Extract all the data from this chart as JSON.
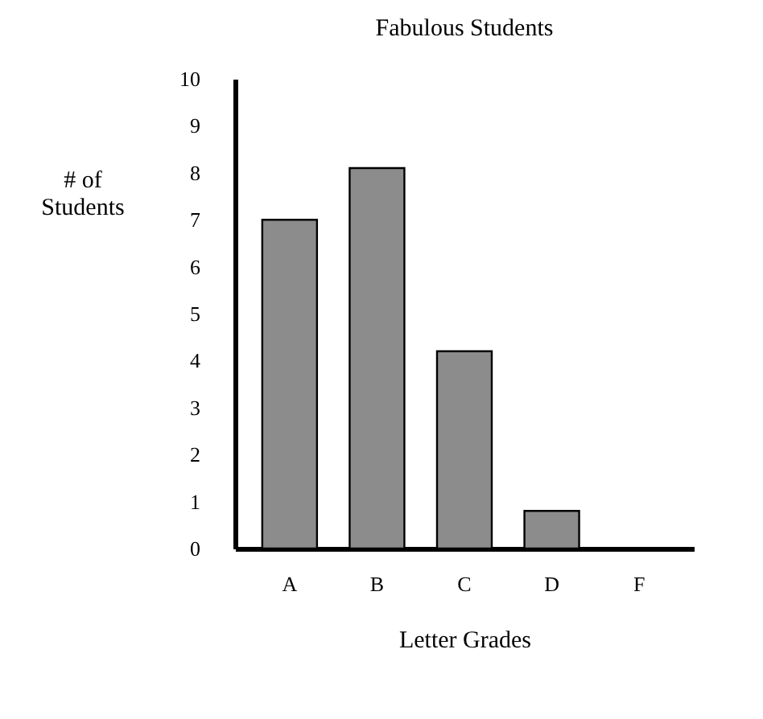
{
  "chart_data": {
    "type": "bar",
    "title": "Fabulous Students",
    "xlabel": "Letter Grades",
    "ylabel": "# of Students",
    "categories": [
      "A",
      "B",
      "C",
      "D",
      "F"
    ],
    "values": [
      7.0,
      8.1,
      4.2,
      0.8,
      0
    ],
    "color": "#8c8c8c",
    "ylim": [
      0,
      10
    ],
    "yticks": [
      0,
      1,
      2,
      3,
      4,
      5,
      6,
      7,
      8,
      9,
      10
    ],
    "grid": false
  }
}
